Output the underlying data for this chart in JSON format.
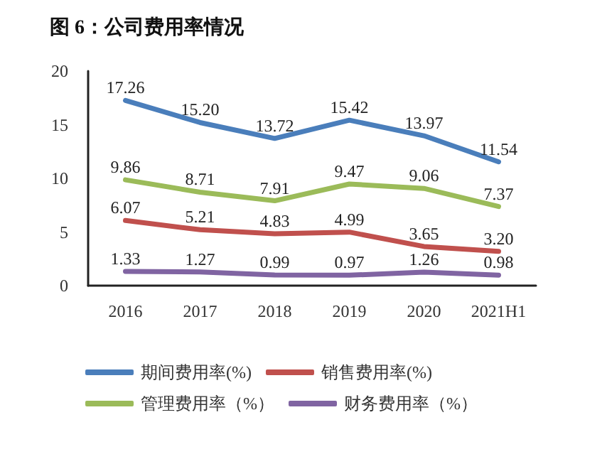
{
  "chart_data": {
    "type": "line",
    "title": "图 6：公司费用率情况",
    "categories": [
      "2016",
      "2017",
      "2018",
      "2019",
      "2020",
      "2021H1"
    ],
    "series": [
      {
        "name": "期间费用率(%)",
        "color": "#4a7ebb",
        "values": [
          17.26,
          15.2,
          13.72,
          15.42,
          13.97,
          11.54
        ],
        "value_labels": [
          "17.26",
          "15.20",
          "13.72",
          "15.42",
          "13.97",
          "11.54"
        ]
      },
      {
        "name": "销售费用率(%)",
        "color": "#c0504d",
        "values": [
          6.07,
          5.21,
          4.83,
          4.99,
          3.65,
          3.2
        ],
        "value_labels": [
          "6.07",
          "5.21",
          "4.83",
          "4.99",
          "3.65",
          "3.20"
        ]
      },
      {
        "name": "管理费用率（%）",
        "color": "#9bbb59",
        "values": [
          9.86,
          8.71,
          7.91,
          9.47,
          9.06,
          7.37
        ],
        "value_labels": [
          "9.86",
          "8.71",
          "7.91",
          "9.47",
          "9.06",
          "7.37"
        ]
      },
      {
        "name": "财务费用率（%）",
        "color": "#8064a2",
        "values": [
          1.33,
          1.27,
          0.99,
          0.97,
          1.26,
          0.98
        ],
        "value_labels": [
          "1.33",
          "1.27",
          "0.99",
          "0.97",
          "1.26",
          "0.98"
        ]
      }
    ],
    "ylim": [
      0,
      20
    ],
    "yticks": [
      0,
      5,
      10,
      15,
      20
    ],
    "grid": false,
    "legend": "bottom",
    "marker": "none",
    "line_style": "solid"
  }
}
